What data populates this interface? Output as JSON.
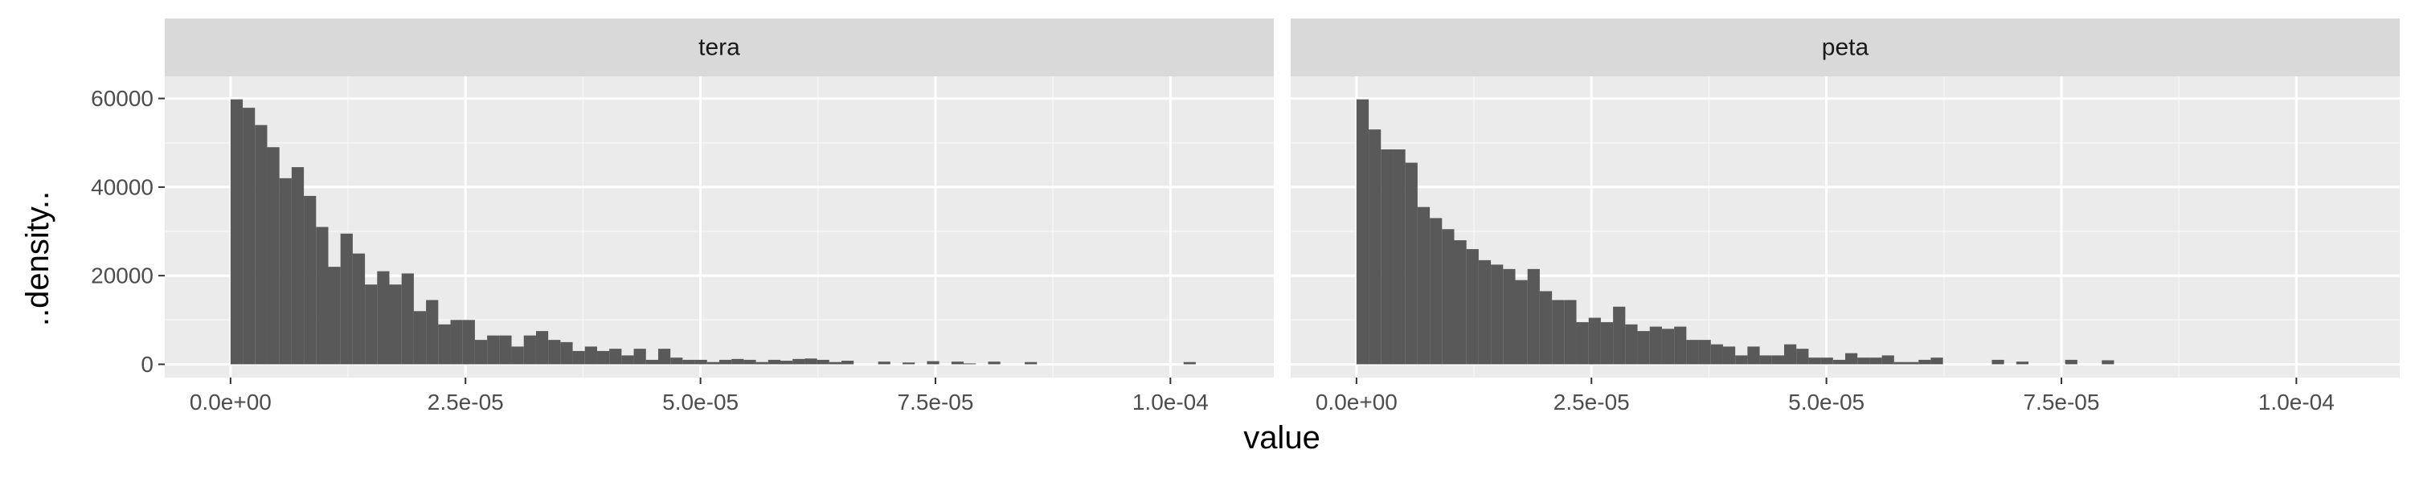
{
  "chart_data": {
    "type": "bar",
    "subtype": "faceted-histogram",
    "xlabel": "value",
    "ylabel": "..density..",
    "xlim": [
      -7e-06,
      0.000111
    ],
    "ylim": [
      -3000,
      65000
    ],
    "x_breaks": [
      0,
      2.5e-05,
      5e-05,
      7.5e-05,
      0.0001
    ],
    "x_tick_labels": [
      "0.0e+00",
      "2.5e-05",
      "5.0e-05",
      "7.5e-05",
      "1.0e-04"
    ],
    "y_breaks": [
      0,
      20000,
      40000,
      60000
    ],
    "y_tick_labels": [
      "0",
      "20000",
      "40000",
      "60000"
    ],
    "grid": true,
    "bin_start": 0,
    "bin_width": 1.3e-06,
    "colors": {
      "panel_bg": "#ebebeb",
      "grid_major": "#ffffff",
      "grid_minor": "#f5f5f5",
      "strip_bg": "#d9d9d9",
      "bar_fill": "#595959"
    },
    "facets": [
      {
        "name": "tera",
        "values": [
          59800,
          57900,
          54000,
          49000,
          42000,
          44500,
          38000,
          31000,
          22000,
          29500,
          25000,
          18000,
          21000,
          18000,
          20500,
          12000,
          14500,
          9000,
          10000,
          10000,
          5500,
          6500,
          6500,
          4000,
          6500,
          7500,
          5500,
          5000,
          3000,
          4000,
          3000,
          3500,
          2000,
          3500,
          1000,
          3500,
          1500,
          1000,
          1000,
          500,
          1000,
          1200,
          1000,
          500,
          1000,
          800,
          1200,
          1300,
          1000,
          500,
          800,
          0,
          0,
          600,
          0,
          400,
          0,
          700,
          0,
          600,
          200,
          0,
          600,
          0,
          0,
          500,
          0,
          0,
          0,
          0,
          0,
          0,
          0,
          0,
          0,
          0,
          0,
          0,
          500,
          0,
          0,
          0,
          0,
          0,
          0,
          0,
          0,
          0,
          0,
          0
        ]
      },
      {
        "name": "peta",
        "values": [
          59800,
          53000,
          48500,
          48500,
          45500,
          35500,
          33000,
          30500,
          28000,
          26000,
          23500,
          22500,
          21500,
          19000,
          21500,
          16500,
          14500,
          14500,
          9500,
          10500,
          9500,
          13000,
          9000,
          7500,
          8500,
          8000,
          8500,
          5500,
          5500,
          4500,
          4000,
          2000,
          4000,
          2000,
          2000,
          4500,
          3500,
          1500,
          1500,
          1000,
          2500,
          1500,
          1500,
          2000,
          500,
          500,
          1000,
          1500,
          0,
          0,
          0,
          0,
          1000,
          0,
          600,
          0,
          0,
          0,
          1000,
          0,
          0,
          900,
          0,
          0,
          0,
          0,
          0,
          0,
          0,
          0,
          0,
          0,
          0,
          0,
          0,
          0,
          0,
          0,
          0,
          0,
          0,
          0,
          0,
          0,
          0,
          0,
          0,
          0,
          0,
          0,
          0,
          0,
          0,
          0,
          0,
          0,
          0,
          0,
          0,
          0,
          0,
          0,
          0,
          0,
          0,
          0,
          0,
          0,
          0
        ]
      }
    ]
  }
}
